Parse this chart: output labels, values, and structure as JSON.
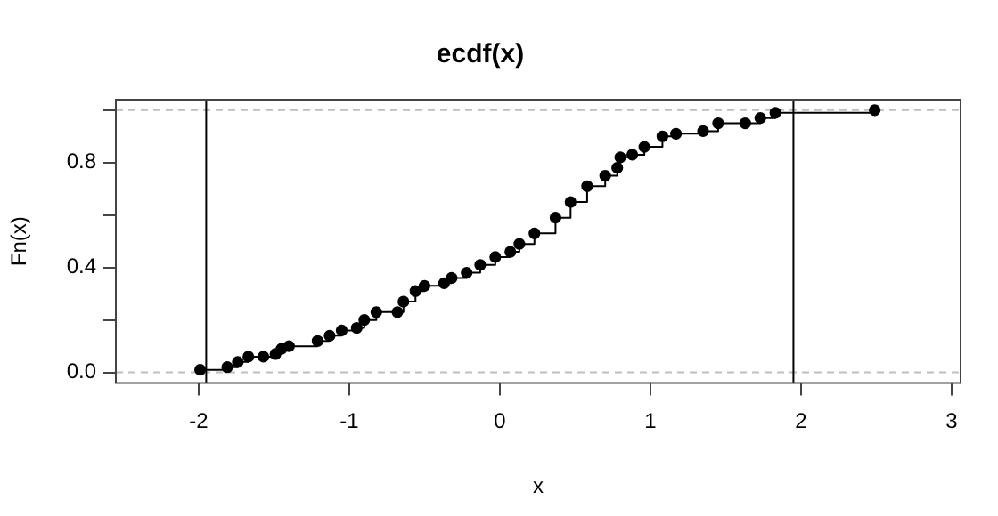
{
  "chart_data": {
    "type": "step",
    "title": "ecdf(x)",
    "xlabel": "x",
    "ylabel": "Fn(x)",
    "x": [
      -1.99,
      -1.81,
      -1.74,
      -1.67,
      -1.57,
      -1.49,
      -1.45,
      -1.4,
      -1.21,
      -1.13,
      -1.05,
      -0.95,
      -0.9,
      -0.82,
      -0.68,
      -0.64,
      -0.56,
      -0.5,
      -0.37,
      -0.32,
      -0.22,
      -0.13,
      -0.03,
      0.07,
      0.13,
      0.23,
      0.37,
      0.47,
      0.58,
      0.7,
      0.78,
      0.8,
      0.88,
      0.96,
      1.08,
      1.17,
      1.35,
      1.45,
      1.63,
      1.73,
      1.83,
      2.49
    ],
    "values": [
      0.01,
      0.02,
      0.04,
      0.06,
      0.06,
      0.07,
      0.09,
      0.1,
      0.12,
      0.14,
      0.16,
      0.17,
      0.2,
      0.23,
      0.23,
      0.27,
      0.31,
      0.33,
      0.34,
      0.36,
      0.38,
      0.41,
      0.44,
      0.46,
      0.49,
      0.53,
      0.59,
      0.65,
      0.71,
      0.75,
      0.78,
      0.82,
      0.83,
      0.86,
      0.9,
      0.91,
      0.92,
      0.95,
      0.95,
      0.97,
      0.99,
      1.0
    ],
    "color": "#000000",
    "marker": "circle",
    "grid": false,
    "legend": false,
    "xlim": [
      -2.55,
      3.06
    ],
    "xticks": [
      -2,
      -1,
      0,
      1,
      2,
      3
    ],
    "ylim": [
      -0.04,
      1.04
    ],
    "yticks": [
      {
        "value": 0,
        "label": "0.0"
      },
      {
        "value": 0.2,
        "label": null
      },
      {
        "value": 0.4,
        "label": "0.4"
      },
      {
        "value": 0.6,
        "label": null
      },
      {
        "value": 0.8,
        "label": "0.8"
      },
      {
        "value": 1,
        "label": null
      }
    ],
    "ref_lines": [
      {
        "axis": "y",
        "value": 0,
        "color": "#bebebe",
        "line_style": "dashed"
      },
      {
        "axis": "y",
        "value": 1,
        "color": "#bebebe",
        "line_style": "dashed"
      },
      {
        "axis": "x",
        "value": -1.95,
        "color": "#000000",
        "line_style": "solid"
      },
      {
        "axis": "x",
        "value": 1.95,
        "color": "#000000",
        "line_style": "solid"
      }
    ]
  }
}
